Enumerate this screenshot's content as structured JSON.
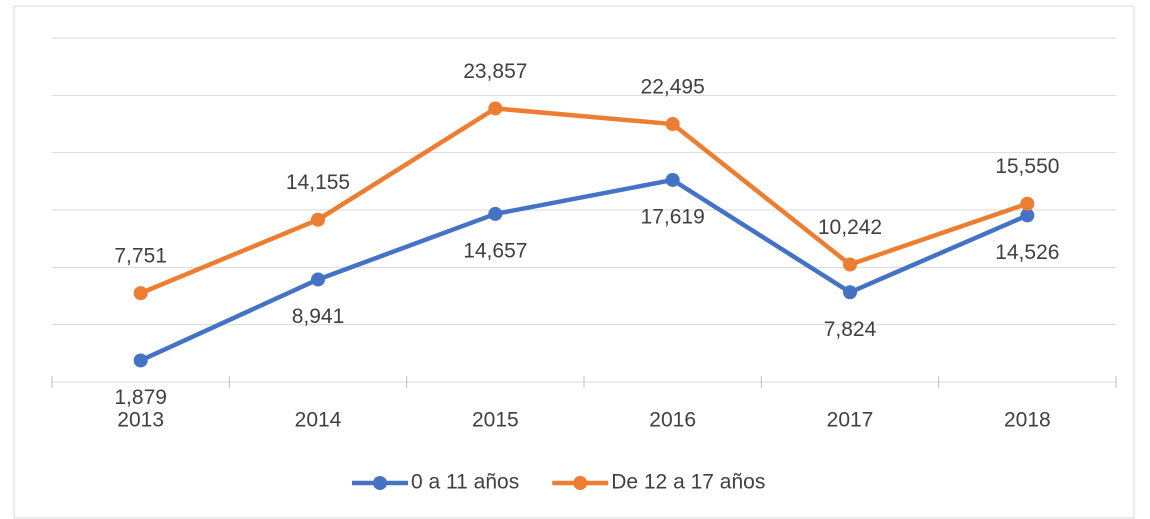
{
  "chart_data": {
    "type": "line",
    "categories": [
      "2013",
      "2014",
      "2015",
      "2016",
      "2017",
      "2018"
    ],
    "series": [
      {
        "name": "0 a 11 años",
        "color": "#4472c4",
        "values": [
          1879,
          8941,
          14657,
          17619,
          7824,
          14526
        ],
        "value_labels": [
          "1,879",
          "8,941",
          "14,657",
          "17,619",
          "7,824",
          "14,526"
        ]
      },
      {
        "name": "De 12 a 17 años",
        "color": "#ed7d31",
        "values": [
          7751,
          14155,
          23857,
          22495,
          10242,
          15550
        ],
        "value_labels": [
          "7,751",
          "14,155",
          "23,857",
          "22,495",
          "10,242",
          "15,550"
        ]
      }
    ],
    "ylim": [
      0,
      30000
    ],
    "yticks": [
      0,
      5000,
      10000,
      15000,
      20000,
      25000,
      30000
    ],
    "grid": true,
    "legend": "bottom"
  }
}
